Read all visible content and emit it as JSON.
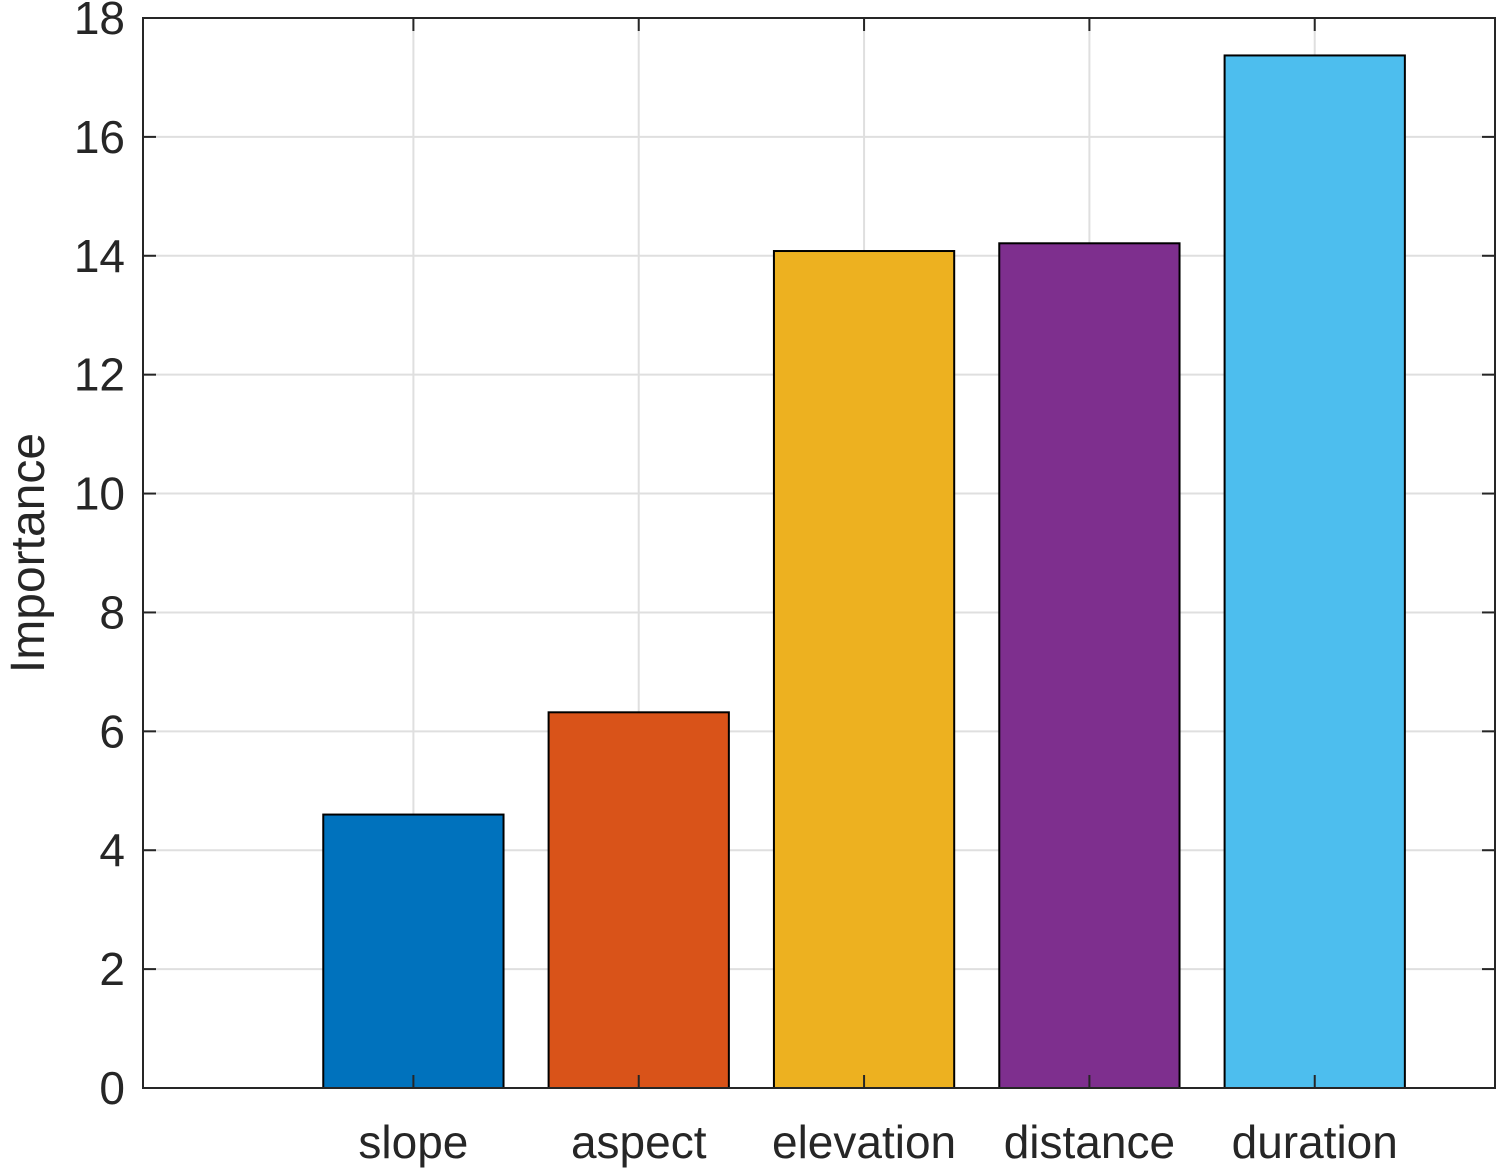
{
  "chart_data": {
    "type": "bar",
    "title": "",
    "xlabel": "",
    "ylabel": "Importance",
    "categories": [
      "slope",
      "aspect",
      "elevation",
      "distance",
      "duration"
    ],
    "values": [
      4.6,
      6.32,
      14.08,
      14.21,
      17.37
    ],
    "colors": [
      "#0072BD",
      "#D95319",
      "#EDB120",
      "#7E2F8E",
      "#4DBEEE"
    ],
    "ylim": [
      0,
      18
    ],
    "xlim": [
      -0.2,
      5.8
    ],
    "yticks": [
      0,
      2,
      4,
      6,
      8,
      10,
      12,
      14,
      16,
      18
    ],
    "grid": true,
    "legend": "none"
  }
}
